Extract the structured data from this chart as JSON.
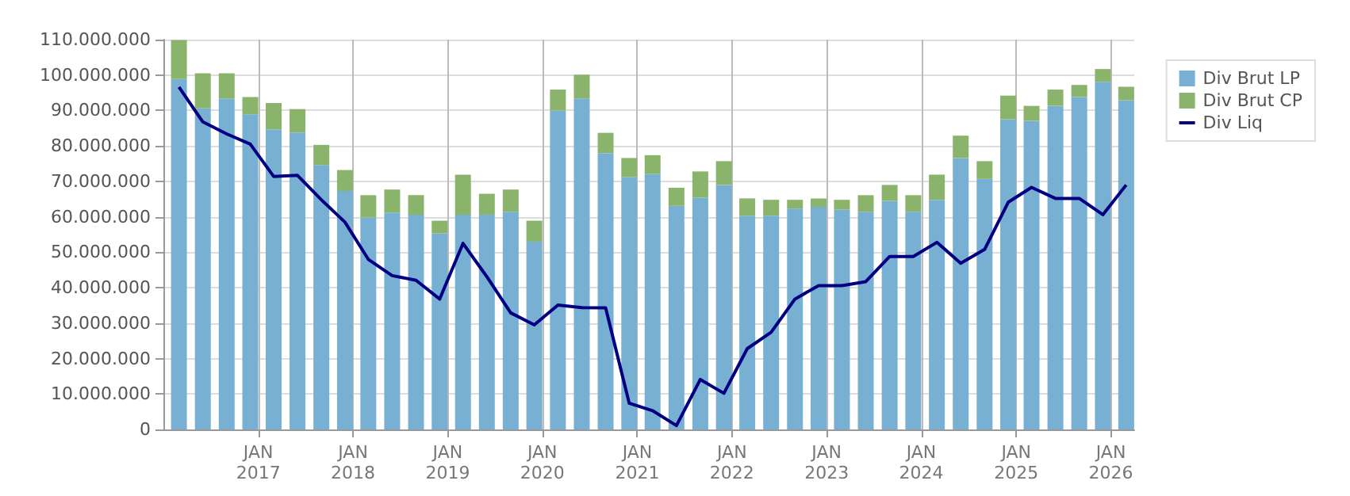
{
  "chart_data": {
    "type": "bar",
    "stacked": true,
    "x": [
      "2016-03",
      "2016-06",
      "2016-09",
      "2016-12",
      "2017-03",
      "2017-06",
      "2017-09",
      "2017-12",
      "2018-03",
      "2018-06",
      "2018-09",
      "2018-12",
      "2019-03",
      "2019-06",
      "2019-09",
      "2019-12",
      "2020-03",
      "2020-06",
      "2020-09",
      "2020-12",
      "2021-03",
      "2021-06",
      "2021-09",
      "2021-12",
      "2022-03",
      "2022-06",
      "2022-09",
      "2022-12",
      "2023-03",
      "2023-06",
      "2023-09",
      "2023-12",
      "2024-03",
      "2024-06",
      "2024-09",
      "2024-12",
      "2025-03",
      "2025-06",
      "2025-09",
      "2025-12",
      "2026-03"
    ],
    "series": [
      {
        "name": "Div Brut LP",
        "color": "#78b0d3",
        "values": [
          98900000,
          90600000,
          93400000,
          88900000,
          84700000,
          83800000,
          74600000,
          67300000,
          59800000,
          61200000,
          60600000,
          55300000,
          60600000,
          60600000,
          61400000,
          53000000,
          90000000,
          93400000,
          78000000,
          71200000,
          72100000,
          63100000,
          65400000,
          69000000,
          60300000,
          60300000,
          62300000,
          62800000,
          62000000,
          61400000,
          64500000,
          61400000,
          64800000,
          76600000,
          70700000,
          87500000,
          87100000,
          91300000,
          93800000,
          98100000,
          92900000
        ]
      },
      {
        "name": "Div Brut CP",
        "color": "#8ab36b",
        "values": [
          11000000,
          9900000,
          7100000,
          4900000,
          7400000,
          6600000,
          5700000,
          5900000,
          6300000,
          6500000,
          5500000,
          3600000,
          11300000,
          5900000,
          6300000,
          5900000,
          5900000,
          6700000,
          5700000,
          5400000,
          5300000,
          5100000,
          7400000,
          6700000,
          4900000,
          4500000,
          2500000,
          2400000,
          2800000,
          4700000,
          4500000,
          4700000,
          7100000,
          6300000,
          5000000,
          6700000,
          4200000,
          4600000,
          3400000,
          3600000,
          3800000
        ]
      },
      {
        "name": "Div Liq",
        "type": "line",
        "color": "#000080",
        "values": [
          96600000,
          86800000,
          83400000,
          80500000,
          71400000,
          71700000,
          64800000,
          58500000,
          48000000,
          43400000,
          42100000,
          36800000,
          52500000,
          43100000,
          32900000,
          29500000,
          35100000,
          34400000,
          34300000,
          7400000,
          5300000,
          1100000,
          14100000,
          10200000,
          22800000,
          27400000,
          36800000,
          40600000,
          40600000,
          41700000,
          48800000,
          48800000,
          52800000,
          46900000,
          50800000,
          64100000,
          68300000,
          65200000,
          65200000,
          60600000,
          69000000
        ]
      }
    ],
    "xlim": [
      "2016-01",
      "2026-04"
    ],
    "xticks": [
      {
        "value": "2017-01",
        "label": "JAN\n2017"
      },
      {
        "value": "2018-01",
        "label": "JAN\n2018"
      },
      {
        "value": "2019-01",
        "label": "JAN\n2019"
      },
      {
        "value": "2020-01",
        "label": "JAN\n2020"
      },
      {
        "value": "2021-01",
        "label": "JAN\n2021"
      },
      {
        "value": "2022-01",
        "label": "JAN\n2022"
      },
      {
        "value": "2023-01",
        "label": "JAN\n2023"
      },
      {
        "value": "2024-01",
        "label": "JAN\n2024"
      },
      {
        "value": "2025-01",
        "label": "JAN\n2025"
      },
      {
        "value": "2026-01",
        "label": "JAN\n2026"
      }
    ],
    "ylim": [
      0,
      110000000
    ],
    "yticks": [
      {
        "value": 0,
        "label": "0"
      },
      {
        "value": 10000000,
        "label": "10.000.000"
      },
      {
        "value": 20000000,
        "label": "20.000.000"
      },
      {
        "value": 30000000,
        "label": "30.000.000"
      },
      {
        "value": 40000000,
        "label": "40.000.000"
      },
      {
        "value": 50000000,
        "label": "50.000.000"
      },
      {
        "value": 60000000,
        "label": "60.000.000"
      },
      {
        "value": 70000000,
        "label": "70.000.000"
      },
      {
        "value": 80000000,
        "label": "80.000.000"
      },
      {
        "value": 90000000,
        "label": "90.000.000"
      },
      {
        "value": 100000000,
        "label": "100.000.000"
      },
      {
        "value": 110000000,
        "label": "110.000.000"
      }
    ],
    "grid": true,
    "legend": "top right",
    "marker": "none",
    "line_style": "solid"
  }
}
